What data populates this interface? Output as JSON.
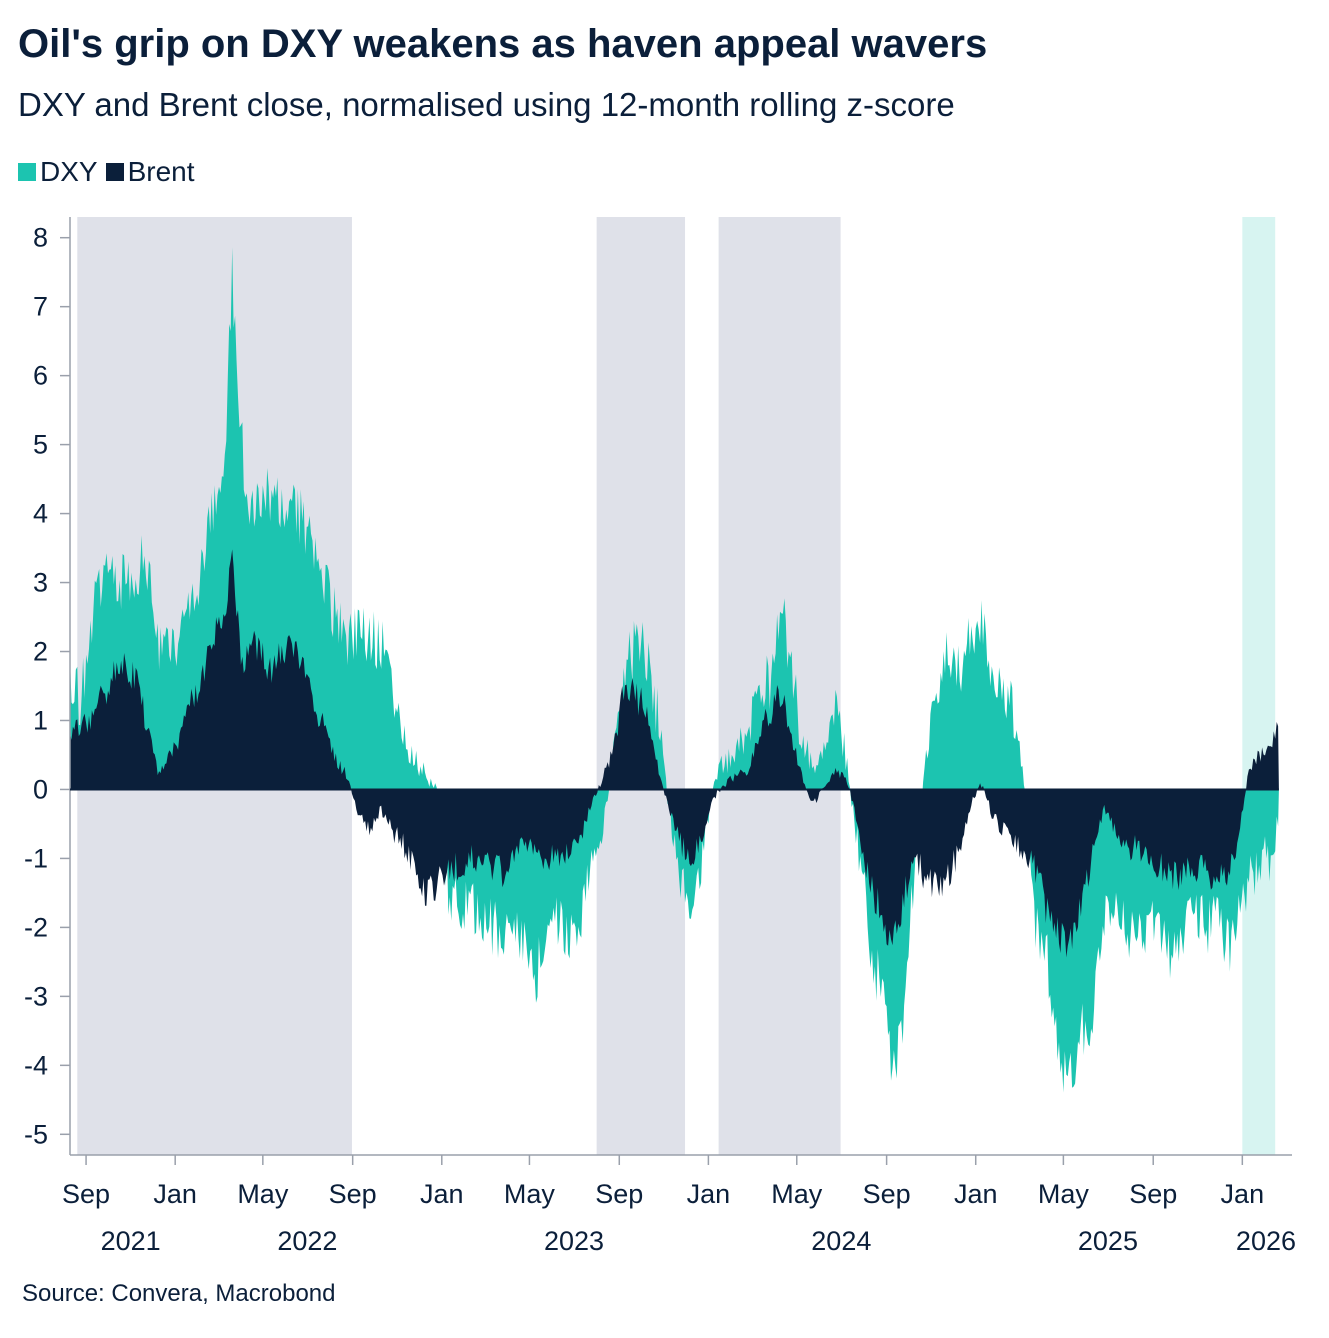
{
  "header": {
    "title": "Oil's grip on DXY weakens as haven appeal wavers",
    "subtitle": "DXY and Brent close, normalised using 12-month rolling z-score"
  },
  "legend": [
    {
      "label": "DXY",
      "color": "#1cc4b0"
    },
    {
      "label": "Brent",
      "color": "#0b1f3a"
    }
  ],
  "footer": {
    "source": "Source: Convera, Macrobond"
  },
  "colors": {
    "dxy": "#1cc4b0",
    "brent": "#0b1f3a",
    "shade_grey": "#dfe1e9",
    "shade_teal": "#d7f4f1",
    "axis": "#9aa0ab"
  },
  "chart_data": {
    "type": "area",
    "title": "Oil's grip on DXY weakens as haven appeal wavers",
    "subtitle": "DXY and Brent close, normalised using 12-month rolling z-score",
    "xlabel": "",
    "ylabel": "",
    "ylim": [
      -5.3,
      8.3
    ],
    "yticks": [
      8,
      7,
      6,
      5,
      4,
      3,
      2,
      1,
      0,
      -1,
      -2,
      -3,
      -4,
      -5
    ],
    "xlim": [
      "2021-08-10",
      "2026-03-10"
    ],
    "xticks": [
      {
        "date": "2021-09-01",
        "label": "Sep",
        "year": "2021"
      },
      {
        "date": "2022-01-01",
        "label": "Jan",
        "year": ""
      },
      {
        "date": "2022-05-01",
        "label": "May",
        "year": "2022"
      },
      {
        "date": "2022-09-01",
        "label": "Sep",
        "year": ""
      },
      {
        "date": "2023-01-01",
        "label": "Jan",
        "year": ""
      },
      {
        "date": "2023-05-01",
        "label": "May",
        "year": "2023"
      },
      {
        "date": "2023-09-01",
        "label": "Sep",
        "year": ""
      },
      {
        "date": "2024-01-01",
        "label": "Jan",
        "year": ""
      },
      {
        "date": "2024-05-01",
        "label": "May",
        "year": "2024"
      },
      {
        "date": "2024-09-01",
        "label": "Sep",
        "year": ""
      },
      {
        "date": "2025-01-01",
        "label": "Jan",
        "year": ""
      },
      {
        "date": "2025-05-01",
        "label": "May",
        "year": "2025"
      },
      {
        "date": "2025-09-01",
        "label": "Sep",
        "year": ""
      },
      {
        "date": "2026-01-01",
        "label": "Jan",
        "year": "2026"
      }
    ],
    "year_label_dates": {
      "2021": "2021-11-01",
      "2022": "2022-07-01",
      "2023": "2023-07-01",
      "2024": "2024-07-01",
      "2025": "2025-07-01",
      "2026": "2026-02-15"
    },
    "shaded_periods": [
      {
        "start": "2021-08-20",
        "end": "2022-08-31",
        "color": "grey"
      },
      {
        "start": "2023-08-01",
        "end": "2023-11-30",
        "color": "grey"
      },
      {
        "start": "2024-01-15",
        "end": "2024-06-30",
        "color": "grey"
      },
      {
        "start": "2026-01-01",
        "end": "2026-02-15",
        "color": "teal"
      }
    ],
    "grid": false,
    "legend_position": "top-left",
    "series": [
      {
        "name": "DXY",
        "color": "#1cc4b0",
        "points": [
          [
            "2021-08-10",
            1.6
          ],
          [
            "2021-08-25",
            1.3
          ],
          [
            "2021-09-10",
            2.4
          ],
          [
            "2021-09-25",
            3.3
          ],
          [
            "2021-10-10",
            3.0
          ],
          [
            "2021-10-25",
            3.1
          ],
          [
            "2021-11-10",
            3.2
          ],
          [
            "2021-11-25",
            3.3
          ],
          [
            "2021-12-10",
            2.0
          ],
          [
            "2021-12-25",
            2.0
          ],
          [
            "2022-01-10",
            2.4
          ],
          [
            "2022-01-25",
            2.9
          ],
          [
            "2022-02-10",
            3.3
          ],
          [
            "2022-02-25",
            4.2
          ],
          [
            "2022-03-10",
            4.5
          ],
          [
            "2022-03-20",
            7.5
          ],
          [
            "2022-04-01",
            5.2
          ],
          [
            "2022-04-10",
            4.2
          ],
          [
            "2022-04-25",
            4.0
          ],
          [
            "2022-05-10",
            4.3
          ],
          [
            "2022-05-25",
            4.0
          ],
          [
            "2022-06-10",
            4.4
          ],
          [
            "2022-06-25",
            3.8
          ],
          [
            "2022-07-10",
            3.5
          ],
          [
            "2022-07-25",
            3.0
          ],
          [
            "2022-08-10",
            2.4
          ],
          [
            "2022-08-25",
            2.0
          ],
          [
            "2022-09-10",
            2.5
          ],
          [
            "2022-09-25",
            2.2
          ],
          [
            "2022-10-10",
            2.1
          ],
          [
            "2022-10-25",
            1.5
          ],
          [
            "2022-11-10",
            0.8
          ],
          [
            "2022-11-25",
            0.4
          ],
          [
            "2022-12-10",
            0.2
          ],
          [
            "2022-12-25",
            0.1
          ],
          [
            "2023-01-10",
            -1.5
          ],
          [
            "2023-01-25",
            -1.6
          ],
          [
            "2023-02-10",
            -1.7
          ],
          [
            "2023-02-25",
            -1.9
          ],
          [
            "2023-03-10",
            -2.0
          ],
          [
            "2023-03-25",
            -2.2
          ],
          [
            "2023-04-10",
            -2.0
          ],
          [
            "2023-04-25",
            -2.2
          ],
          [
            "2023-05-10",
            -2.7
          ],
          [
            "2023-05-25",
            -2.0
          ],
          [
            "2023-06-10",
            -2.0
          ],
          [
            "2023-06-25",
            -2.2
          ],
          [
            "2023-07-10",
            -1.8
          ],
          [
            "2023-07-25",
            -1.0
          ],
          [
            "2023-08-10",
            -0.6
          ],
          [
            "2023-08-25",
            0.6
          ],
          [
            "2023-09-10",
            1.8
          ],
          [
            "2023-09-25",
            2.1
          ],
          [
            "2023-10-10",
            1.9
          ],
          [
            "2023-10-25",
            1.0
          ],
          [
            "2023-11-10",
            -0.5
          ],
          [
            "2023-11-25",
            -1.5
          ],
          [
            "2023-12-10",
            -1.8
          ],
          [
            "2023-12-25",
            -0.8
          ],
          [
            "2024-01-10",
            0.2
          ],
          [
            "2024-01-25",
            0.4
          ],
          [
            "2024-02-10",
            0.6
          ],
          [
            "2024-02-25",
            0.8
          ],
          [
            "2024-03-10",
            1.4
          ],
          [
            "2024-03-25",
            1.6
          ],
          [
            "2024-04-10",
            2.8
          ],
          [
            "2024-04-25",
            1.6
          ],
          [
            "2024-05-10",
            0.6
          ],
          [
            "2024-05-25",
            0.4
          ],
          [
            "2024-06-10",
            0.5
          ],
          [
            "2024-06-25",
            1.3
          ],
          [
            "2024-07-10",
            0.3
          ],
          [
            "2024-07-25",
            -1.0
          ],
          [
            "2024-08-10",
            -2.2
          ],
          [
            "2024-08-25",
            -3.0
          ],
          [
            "2024-09-10",
            -4.2
          ],
          [
            "2024-09-25",
            -3.2
          ],
          [
            "2024-10-10",
            -1.0
          ],
          [
            "2024-10-25",
            0.4
          ],
          [
            "2024-11-10",
            1.5
          ],
          [
            "2024-11-25",
            2.0
          ],
          [
            "2024-12-10",
            1.6
          ],
          [
            "2024-12-25",
            2.2
          ],
          [
            "2025-01-10",
            2.5
          ],
          [
            "2025-01-25",
            1.6
          ],
          [
            "2025-02-10",
            1.5
          ],
          [
            "2025-02-25",
            0.9
          ],
          [
            "2025-03-10",
            0.0
          ],
          [
            "2025-03-25",
            -2.0
          ],
          [
            "2025-04-10",
            -2.5
          ],
          [
            "2025-04-25",
            -4.0
          ],
          [
            "2025-05-10",
            -4.3
          ],
          [
            "2025-05-25",
            -3.5
          ],
          [
            "2025-06-10",
            -3.2
          ],
          [
            "2025-06-25",
            -2.0
          ],
          [
            "2025-07-10",
            -1.5
          ],
          [
            "2025-07-25",
            -2.0
          ],
          [
            "2025-08-10",
            -2.3
          ],
          [
            "2025-08-25",
            -1.8
          ],
          [
            "2025-09-10",
            -2.0
          ],
          [
            "2025-09-25",
            -2.6
          ],
          [
            "2025-10-10",
            -2.0
          ],
          [
            "2025-10-25",
            -1.6
          ],
          [
            "2025-11-10",
            -2.0
          ],
          [
            "2025-11-25",
            -1.8
          ],
          [
            "2025-12-10",
            -2.3
          ],
          [
            "2025-12-25",
            -2.0
          ],
          [
            "2026-01-10",
            -1.4
          ],
          [
            "2026-01-25",
            -1.0
          ],
          [
            "2026-02-10",
            -1.0
          ],
          [
            "2026-02-20",
            -0.5
          ]
        ]
      },
      {
        "name": "Brent",
        "color": "#0b1f3a",
        "points": [
          [
            "2021-08-10",
            0.8
          ],
          [
            "2021-08-25",
            0.9
          ],
          [
            "2021-09-10",
            1.1
          ],
          [
            "2021-09-25",
            1.4
          ],
          [
            "2021-10-10",
            1.7
          ],
          [
            "2021-10-25",
            1.8
          ],
          [
            "2021-11-10",
            1.6
          ],
          [
            "2021-11-25",
            0.8
          ],
          [
            "2021-12-10",
            0.2
          ],
          [
            "2021-12-25",
            0.5
          ],
          [
            "2022-01-10",
            0.8
          ],
          [
            "2022-01-25",
            1.3
          ],
          [
            "2022-02-10",
            1.8
          ],
          [
            "2022-02-25",
            2.3
          ],
          [
            "2022-03-10",
            2.5
          ],
          [
            "2022-03-20",
            3.5
          ],
          [
            "2022-04-01",
            1.8
          ],
          [
            "2022-04-10",
            2.0
          ],
          [
            "2022-04-25",
            2.1
          ],
          [
            "2022-05-10",
            1.7
          ],
          [
            "2022-05-25",
            1.9
          ],
          [
            "2022-06-10",
            2.1
          ],
          [
            "2022-06-25",
            1.9
          ],
          [
            "2022-07-10",
            1.2
          ],
          [
            "2022-07-25",
            0.9
          ],
          [
            "2022-08-10",
            0.4
          ],
          [
            "2022-08-25",
            0.2
          ],
          [
            "2022-09-10",
            -0.4
          ],
          [
            "2022-09-25",
            -0.6
          ],
          [
            "2022-10-10",
            -0.3
          ],
          [
            "2022-10-25",
            -0.6
          ],
          [
            "2022-11-10",
            -0.8
          ],
          [
            "2022-11-25",
            -1.2
          ],
          [
            "2022-12-10",
            -1.5
          ],
          [
            "2022-12-25",
            -1.4
          ],
          [
            "2023-01-10",
            -1.2
          ],
          [
            "2023-01-25",
            -1.1
          ],
          [
            "2023-02-10",
            -1.0
          ],
          [
            "2023-02-25",
            -1.0
          ],
          [
            "2023-03-10",
            -1.1
          ],
          [
            "2023-03-25",
            -1.2
          ],
          [
            "2023-04-10",
            -0.9
          ],
          [
            "2023-04-25",
            -0.8
          ],
          [
            "2023-05-10",
            -0.9
          ],
          [
            "2023-05-25",
            -1.0
          ],
          [
            "2023-06-10",
            -1.0
          ],
          [
            "2023-06-25",
            -0.9
          ],
          [
            "2023-07-10",
            -0.7
          ],
          [
            "2023-07-25",
            -0.2
          ],
          [
            "2023-08-10",
            0.2
          ],
          [
            "2023-08-25",
            0.6
          ],
          [
            "2023-09-10",
            1.6
          ],
          [
            "2023-09-25",
            1.3
          ],
          [
            "2023-10-10",
            1.2
          ],
          [
            "2023-10-25",
            0.2
          ],
          [
            "2023-11-10",
            -0.3
          ],
          [
            "2023-11-25",
            -0.8
          ],
          [
            "2023-12-10",
            -1.0
          ],
          [
            "2023-12-25",
            -0.6
          ],
          [
            "2024-01-10",
            -0.1
          ],
          [
            "2024-01-25",
            0.1
          ],
          [
            "2024-02-10",
            0.2
          ],
          [
            "2024-02-25",
            0.3
          ],
          [
            "2024-03-10",
            0.8
          ],
          [
            "2024-03-25",
            1.1
          ],
          [
            "2024-04-10",
            1.4
          ],
          [
            "2024-04-25",
            0.7
          ],
          [
            "2024-05-10",
            0.1
          ],
          [
            "2024-05-25",
            -0.2
          ],
          [
            "2024-06-10",
            0.1
          ],
          [
            "2024-06-25",
            0.3
          ],
          [
            "2024-07-10",
            0.1
          ],
          [
            "2024-07-25",
            -0.6
          ],
          [
            "2024-08-10",
            -1.4
          ],
          [
            "2024-08-25",
            -1.8
          ],
          [
            "2024-09-10",
            -2.3
          ],
          [
            "2024-09-25",
            -1.5
          ],
          [
            "2024-10-10",
            -1.0
          ],
          [
            "2024-10-25",
            -1.3
          ],
          [
            "2024-11-10",
            -1.4
          ],
          [
            "2024-11-25",
            -1.2
          ],
          [
            "2024-12-10",
            -0.9
          ],
          [
            "2024-12-25",
            -0.2
          ],
          [
            "2025-01-10",
            0.1
          ],
          [
            "2025-01-25",
            -0.4
          ],
          [
            "2025-02-10",
            -0.6
          ],
          [
            "2025-02-25",
            -0.8
          ],
          [
            "2025-03-10",
            -0.9
          ],
          [
            "2025-03-25",
            -1.2
          ],
          [
            "2025-04-10",
            -1.8
          ],
          [
            "2025-04-25",
            -2.1
          ],
          [
            "2025-05-10",
            -2.3
          ],
          [
            "2025-05-25",
            -1.7
          ],
          [
            "2025-06-10",
            -0.9
          ],
          [
            "2025-06-25",
            -0.3
          ],
          [
            "2025-07-10",
            -0.6
          ],
          [
            "2025-07-25",
            -0.9
          ],
          [
            "2025-08-10",
            -0.8
          ],
          [
            "2025-08-25",
            -1.0
          ],
          [
            "2025-09-10",
            -1.1
          ],
          [
            "2025-09-25",
            -1.2
          ],
          [
            "2025-10-10",
            -1.3
          ],
          [
            "2025-10-25",
            -1.1
          ],
          [
            "2025-11-10",
            -1.2
          ],
          [
            "2025-11-25",
            -1.4
          ],
          [
            "2025-12-10",
            -1.2
          ],
          [
            "2025-12-25",
            -0.9
          ],
          [
            "2026-01-10",
            0.3
          ],
          [
            "2026-01-25",
            0.5
          ],
          [
            "2026-02-10",
            0.6
          ],
          [
            "2026-02-20",
            1.0
          ]
        ]
      }
    ]
  }
}
